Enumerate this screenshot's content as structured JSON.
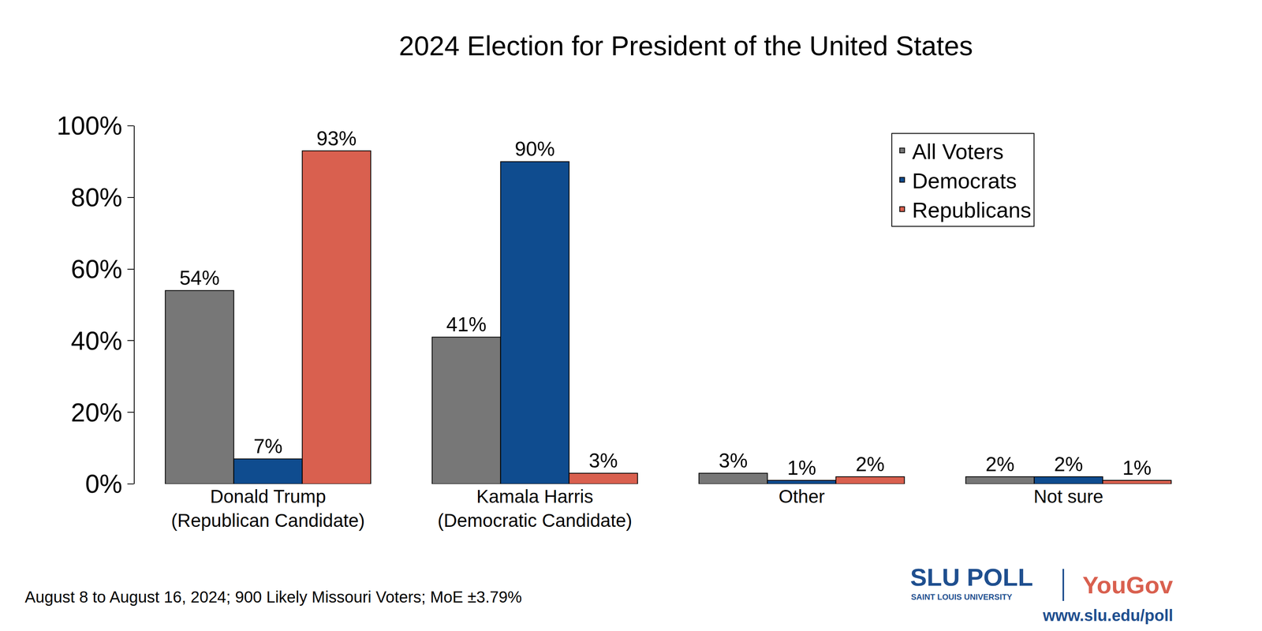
{
  "chart_data": {
    "type": "bar",
    "title": "2024 Election for President of the United States",
    "categories": [
      "Donald Trump\n(Republican Candidate)",
      "Kamala Harris\n(Democratic Candidate)",
      "Other",
      "Not sure"
    ],
    "series": [
      {
        "name": "All Voters",
        "color": "#777777",
        "values": [
          54,
          41,
          3,
          2
        ],
        "value_labels": [
          "54%",
          "41%",
          "3%",
          "2%"
        ]
      },
      {
        "name": "Democrats",
        "color": "#0f4c8f",
        "values": [
          7,
          90,
          1,
          2
        ],
        "value_labels": [
          "7%",
          "90%",
          "1%",
          "2%"
        ]
      },
      {
        "name": "Republicans",
        "color": "#d9604f",
        "values": [
          93,
          3,
          2,
          1
        ],
        "value_labels": [
          "93%",
          "3%",
          "2%",
          "1%"
        ]
      }
    ],
    "ylim": [
      0,
      100
    ],
    "yticks": [
      {
        "value": 0,
        "label": "0%"
      },
      {
        "value": 20,
        "label": "20%"
      },
      {
        "value": 40,
        "label": "40%"
      },
      {
        "value": 60,
        "label": "60%"
      },
      {
        "value": 80,
        "label": "80%"
      },
      {
        "value": 100,
        "label": "100%"
      }
    ],
    "grid": false,
    "legend": "upper right",
    "data_labels": true,
    "annotations": [
      "August 8 to August 16, 2024; 900 Likely Missouri Voters; MoE ±3.79%",
      "SLU POLL",
      "SAINT LOUIS UNIVERSITY",
      "YouGov",
      "www.slu.edu/poll"
    ]
  }
}
